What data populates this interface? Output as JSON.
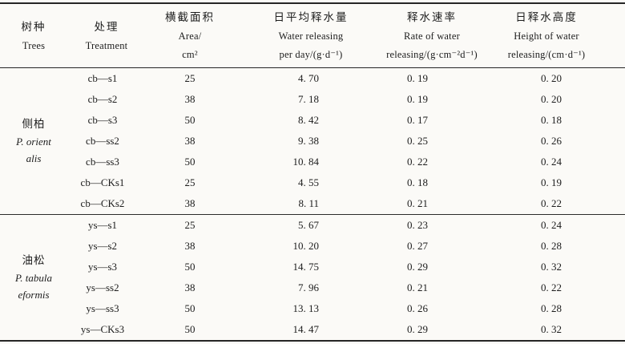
{
  "colors": {
    "ink": "#1d1d1d",
    "paper": "#fbfaf7",
    "rule": "#262626"
  },
  "table": {
    "columns": [
      {
        "cn": "树种",
        "en": "Trees"
      },
      {
        "cn": "处理",
        "en": "Treatment"
      },
      {
        "cn": "横截面积",
        "en": "Area/\ncm²"
      },
      {
        "cn": "日平均释水量",
        "en": "Water releasing\nper day/(g·d⁻¹)"
      },
      {
        "cn": "释水速率",
        "en": "Rate of water\nreleasing/(g·cm⁻²d⁻¹)"
      },
      {
        "cn": "日释水高度",
        "en": "Height of water\nreleasing/(cm·d⁻¹)"
      }
    ],
    "groups": [
      {
        "species_cn": "侧柏",
        "species_latin": "P. orient\nalis",
        "rows": [
          {
            "treatment": "cb—s1",
            "area": "25",
            "water_per_day": "4. 70",
            "rate": "0. 19",
            "height": "0. 20"
          },
          {
            "treatment": "cb—s2",
            "area": "38",
            "water_per_day": "7. 18",
            "rate": "0. 19",
            "height": "0. 20"
          },
          {
            "treatment": "cb—s3",
            "area": "50",
            "water_per_day": "8. 42",
            "rate": "0. 17",
            "height": "0. 18"
          },
          {
            "treatment": "cb—ss2",
            "area": "38",
            "water_per_day": "9. 38",
            "rate": "0. 25",
            "height": "0. 26"
          },
          {
            "treatment": "cb—ss3",
            "area": "50",
            "water_per_day": "10. 84",
            "rate": "0. 22",
            "height": "0. 24"
          },
          {
            "treatment": "cb—CKs1",
            "area": "25",
            "water_per_day": "4. 55",
            "rate": "0. 18",
            "height": "0. 19"
          },
          {
            "treatment": "cb—CKs2",
            "area": "38",
            "water_per_day": "8. 11",
            "rate": "0. 21",
            "height": "0. 22"
          }
        ]
      },
      {
        "species_cn": "油松",
        "species_latin": "P. tabula\neformis",
        "rows": [
          {
            "treatment": "ys—s1",
            "area": "25",
            "water_per_day": "5. 67",
            "rate": "0. 23",
            "height": "0. 24"
          },
          {
            "treatment": "ys—s2",
            "area": "38",
            "water_per_day": "10. 20",
            "rate": "0. 27",
            "height": "0. 28"
          },
          {
            "treatment": "ys—s3",
            "area": "50",
            "water_per_day": "14. 75",
            "rate": "0. 29",
            "height": "0. 32"
          },
          {
            "treatment": "ys—ss2",
            "area": "38",
            "water_per_day": "7. 96",
            "rate": "0. 21",
            "height": "0. 22"
          },
          {
            "treatment": "ys—ss3",
            "area": "50",
            "water_per_day": "13. 13",
            "rate": "0. 26",
            "height": "0. 28"
          },
          {
            "treatment": "ys—CKs3",
            "area": "50",
            "water_per_day": "14. 47",
            "rate": "0. 29",
            "height": "0. 32"
          }
        ]
      }
    ]
  }
}
